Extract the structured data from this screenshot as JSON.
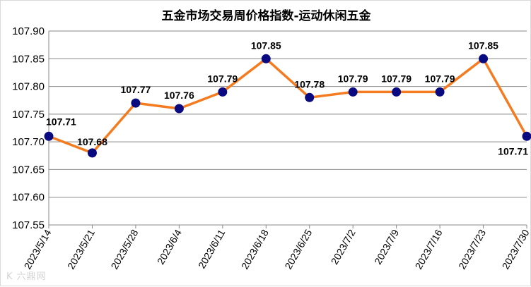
{
  "chart_data": {
    "type": "line",
    "title": "五金市场交易周价格指数-运动休闲五金",
    "xlabel": "",
    "ylabel": "",
    "categories": [
      "2023/5/14",
      "2023/5/21",
      "2023/5/28",
      "2023/6/4",
      "2023/6/11",
      "2023/6/18",
      "2023/6/25",
      "2023/7/2",
      "2023/7/9",
      "2023/7/16",
      "2023/7/23",
      "2023/7/30"
    ],
    "series": [
      {
        "values": [
          107.71,
          107.68,
          107.77,
          107.76,
          107.79,
          107.85,
          107.78,
          107.79,
          107.79,
          107.79,
          107.85,
          107.71
        ],
        "labels": [
          "107.71",
          "107.68",
          "107.77",
          "107.76",
          "107.79",
          "107.85",
          "107.78",
          "107.79",
          "107.79",
          "107.79",
          "107.85",
          "107.71"
        ]
      }
    ],
    "ylim": [
      107.55,
      107.9
    ],
    "yticks": [
      "107.90",
      "107.85",
      "107.80",
      "107.75",
      "107.70",
      "107.65",
      "107.60",
      "107.55"
    ],
    "grid": true,
    "legend": "none",
    "colors": {
      "line": "#f47b20",
      "marker": "#0a0a80",
      "grid": "#888888"
    }
  },
  "watermark": "K 六鼎网"
}
